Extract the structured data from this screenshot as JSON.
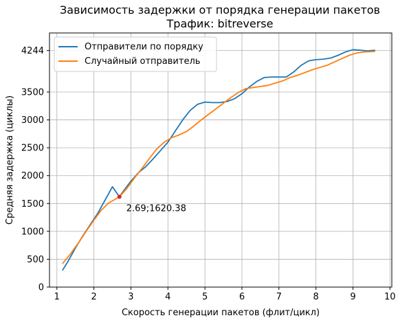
{
  "chart_data": {
    "type": "line",
    "title": "Зависимость задержки от порядка генерации пакетов",
    "subtitle": "Трафик: bitreverse",
    "xlabel": "Скорость генерации пакетов (флит/цикл)",
    "ylabel": "Средняя задержка (циклы)",
    "xlim": [
      0.8,
      10.05
    ],
    "ylim": [
      0,
      4560
    ],
    "xticks": [
      "1",
      "2",
      "3",
      "4",
      "5",
      "6",
      "7",
      "8",
      "9",
      "10"
    ],
    "yticks": [
      "0",
      "500",
      "1000",
      "1500",
      "2000",
      "2500",
      "3000",
      "3500",
      "4244"
    ],
    "grid": true,
    "legend_position": "upper-left",
    "series": [
      {
        "name": "Отправители по порядку",
        "color": "#1f77b4",
        "points": [
          [
            1.15,
            300
          ],
          [
            1.3,
            460
          ],
          [
            1.5,
            700
          ],
          [
            1.7,
            920
          ],
          [
            1.9,
            1120
          ],
          [
            2.1,
            1320
          ],
          [
            2.3,
            1560
          ],
          [
            2.5,
            1800
          ],
          [
            2.69,
            1620
          ],
          [
            2.75,
            1680
          ],
          [
            3.0,
            1900
          ],
          [
            3.2,
            2050
          ],
          [
            3.4,
            2160
          ],
          [
            3.6,
            2300
          ],
          [
            3.8,
            2450
          ],
          [
            4.0,
            2600
          ],
          [
            4.2,
            2800
          ],
          [
            4.4,
            3000
          ],
          [
            4.6,
            3170
          ],
          [
            4.8,
            3280
          ],
          [
            5.0,
            3320
          ],
          [
            5.2,
            3310
          ],
          [
            5.4,
            3310
          ],
          [
            5.6,
            3330
          ],
          [
            5.8,
            3380
          ],
          [
            6.0,
            3470
          ],
          [
            6.2,
            3590
          ],
          [
            6.4,
            3690
          ],
          [
            6.6,
            3760
          ],
          [
            6.8,
            3770
          ],
          [
            7.0,
            3770
          ],
          [
            7.2,
            3770
          ],
          [
            7.4,
            3860
          ],
          [
            7.6,
            3980
          ],
          [
            7.8,
            4060
          ],
          [
            8.0,
            4080
          ],
          [
            8.2,
            4090
          ],
          [
            8.4,
            4110
          ],
          [
            8.6,
            4160
          ],
          [
            8.8,
            4220
          ],
          [
            9.0,
            4260
          ],
          [
            9.2,
            4250
          ],
          [
            9.4,
            4240
          ],
          [
            9.6,
            4250
          ]
        ]
      },
      {
        "name": "Случайный отправитель",
        "color": "#ff7f0e",
        "points": [
          [
            1.15,
            420
          ],
          [
            1.35,
            580
          ],
          [
            1.6,
            810
          ],
          [
            1.8,
            1010
          ],
          [
            2.0,
            1200
          ],
          [
            2.2,
            1380
          ],
          [
            2.4,
            1510
          ],
          [
            2.69,
            1620
          ],
          [
            2.9,
            1780
          ],
          [
            3.1,
            1960
          ],
          [
            3.3,
            2130
          ],
          [
            3.5,
            2310
          ],
          [
            3.7,
            2480
          ],
          [
            3.9,
            2600
          ],
          [
            4.1,
            2680
          ],
          [
            4.3,
            2730
          ],
          [
            4.5,
            2790
          ],
          [
            4.7,
            2890
          ],
          [
            4.9,
            3000
          ],
          [
            5.1,
            3100
          ],
          [
            5.3,
            3200
          ],
          [
            5.5,
            3300
          ],
          [
            5.7,
            3400
          ],
          [
            5.9,
            3490
          ],
          [
            6.1,
            3560
          ],
          [
            6.3,
            3580
          ],
          [
            6.5,
            3600
          ],
          [
            6.7,
            3620
          ],
          [
            6.9,
            3660
          ],
          [
            7.1,
            3700
          ],
          [
            7.3,
            3760
          ],
          [
            7.5,
            3800
          ],
          [
            7.7,
            3850
          ],
          [
            7.9,
            3900
          ],
          [
            8.1,
            3940
          ],
          [
            8.3,
            3980
          ],
          [
            8.5,
            4040
          ],
          [
            8.7,
            4100
          ],
          [
            8.9,
            4160
          ],
          [
            9.1,
            4200
          ],
          [
            9.3,
            4220
          ],
          [
            9.6,
            4230
          ]
        ]
      }
    ],
    "annotation": {
      "x": 2.69,
      "y": 1620.38,
      "label": "2.69;1620.38",
      "marker_color": "#d62728"
    }
  }
}
